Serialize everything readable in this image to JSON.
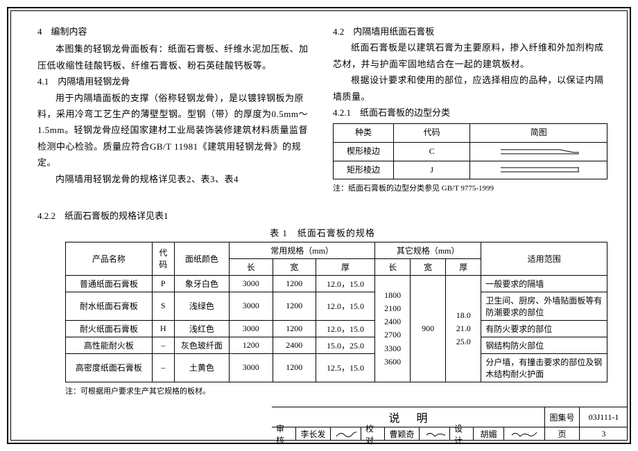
{
  "section4": {
    "heading": "4　编制内容"
  },
  "para1": "本图集的轻钢龙骨面板有：纸面石膏板、纤维水泥加压板、加压低收缩性硅酸钙板、纤维石膏板、粉石英硅酸钙板等。",
  "sec41": {
    "heading": "4.1　内隔墙用轻钢龙骨",
    "p1": "用于内隔墙面板的支撑（俗称轻钢龙骨），是以镀锌钢板为原料，采用冷弯工艺生产的薄壁型钢。型钢（带）的厚度为0.5mm～1.5mm。轻钢龙骨应经国家建材工业局装饰装修建筑材料质量监督检测中心检验。质量应符合GB/T 11981《建筑用轻钢龙骨》的规定。",
    "p2": "内隔墙用轻钢龙骨的规格详见表2、表3、表4"
  },
  "sec42": {
    "heading": "4.2　内隔墙用纸面石膏板",
    "p1": "纸面石膏板是以建筑石膏为主要原料，掺入纤维和外加剂构成芯材，并与护面牢固地结合在一起的建筑板材。",
    "p2": "根据设计要求和使用的部位，应选择相应的品种，以保证内隔墙质量。"
  },
  "sec421": {
    "heading": "4.2.1　纸面石膏板的边型分类",
    "th": {
      "c1": "种类",
      "c2": "代码",
      "c3": "简图"
    },
    "r1": {
      "c1": "楔形棱边",
      "c2": "C"
    },
    "r2": {
      "c1": "矩形棱边",
      "c2": "J"
    },
    "note": "注：纸面石膏板的边型分类参见 GB/T 9775-1999"
  },
  "sec422": {
    "heading": "4.2.2　纸面石膏板的规格详见表1"
  },
  "table1": {
    "title": "表 1　纸面石膏板的规格",
    "head": {
      "name": "产品名称",
      "code": "代码",
      "color": "面纸颜色",
      "common": "常用规格（mm）",
      "other": "其它规格（mm）",
      "scope": "适用范围",
      "len": "长",
      "wid": "宽",
      "thk": "厚"
    },
    "rows": [
      {
        "name": "普通纸面石膏板",
        "code": "P",
        "color": "象牙白色",
        "len": "3000",
        "wid": "1200",
        "thk": "12.0，15.0",
        "scope": "一般要求的隔墙"
      },
      {
        "name": "耐水纸面石膏板",
        "code": "S",
        "color": "浅绿色",
        "len": "3000",
        "wid": "1200",
        "thk": "12.0，15.0",
        "scope": "卫生间、厨房、外墙贴面板等有防潮要求的部位"
      },
      {
        "name": "耐火纸面石膏板",
        "code": "H",
        "color": "浅红色",
        "len": "3000",
        "wid": "1200",
        "thk": "12.0，15.0",
        "scope": "有防火要求的部位"
      },
      {
        "name": "高性能耐火板",
        "code": "–",
        "color": "灰色玻纤面",
        "len": "1200",
        "wid": "2400",
        "thk": "15.0，25.0",
        "scope": "钢结构防火部位"
      },
      {
        "name": "高密度纸面石膏板",
        "code": "–",
        "color": "土黄色",
        "len": "3000",
        "wid": "1200",
        "thk": "12.5，15.0",
        "scope": "分户墙，有撞击要求的部位及钢木结构耐火护面"
      }
    ],
    "other_len": "1800\n2100\n2400\n2700\n3300\n3600",
    "other_wid": "900",
    "other_thk": "18.0\n21.0\n25.0",
    "note": "注：可根据用户要求生产其它规格的板材。"
  },
  "titleblock": {
    "shuoming": "说明",
    "tuji": "图集号",
    "tuji_val": "03J111-1",
    "shenhe": "审核",
    "shenhe_val": "李长发",
    "jiaodui": "校对",
    "jiaodui_val": "曹颖奇",
    "sheji": "设计",
    "sheji_val": "胡媚",
    "ye": "页",
    "ye_val": "3"
  },
  "colors": {
    "line": "#000000",
    "bg": "#ffffff"
  }
}
